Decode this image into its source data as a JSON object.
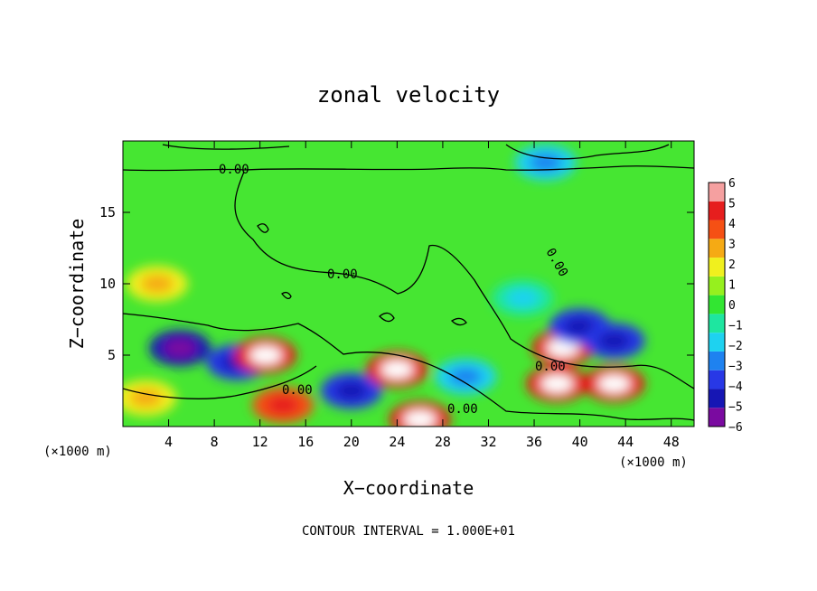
{
  "chart_data": {
    "type": "heatmap",
    "title": "zonal velocity",
    "xlabel": "X−coordinate",
    "ylabel": "Z−coordinate",
    "x_unit_left": "(×1000 m)",
    "x_unit_right": "(×1000 m)",
    "footer": "CONTOUR INTERVAL = 1.000E+01",
    "xlim": [
      0,
      50
    ],
    "ylim": [
      0,
      20
    ],
    "x_ticks": [
      4,
      8,
      12,
      16,
      20,
      24,
      28,
      32,
      36,
      40,
      44,
      48
    ],
    "y_ticks": [
      5,
      10,
      15
    ],
    "contour_label": "0.00",
    "colorbar": {
      "levels": [
        "−6",
        "−5",
        "−4",
        "−3",
        "−2",
        "−1",
        "0",
        "1",
        "2",
        "3",
        "4",
        "5",
        "6"
      ],
      "colors": [
        "#7a0aa0",
        "#1616b4",
        "#2838e6",
        "#1e82f0",
        "#1ed2f0",
        "#1ee6a0",
        "#32e632",
        "#96f01e",
        "#f0f01e",
        "#f5aa14",
        "#f55014",
        "#e61e1e",
        "#f5a0a0"
      ]
    },
    "features": [
      {
        "x": 5,
        "z": 5.5,
        "value": -6
      },
      {
        "x": 10,
        "z": 4.5,
        "value": -5
      },
      {
        "x": 12.5,
        "z": 5,
        "value": 6
      },
      {
        "x": 14,
        "z": 1.5,
        "value": 5
      },
      {
        "x": 20,
        "z": 2.5,
        "value": -5
      },
      {
        "x": 24,
        "z": 4,
        "value": 6
      },
      {
        "x": 26,
        "z": 0.5,
        "value": 6
      },
      {
        "x": 30,
        "z": 3.5,
        "value": -3
      },
      {
        "x": 38,
        "z": 3,
        "value": 6
      },
      {
        "x": 38.5,
        "z": 5.5,
        "value": 6
      },
      {
        "x": 43,
        "z": 3,
        "value": 6
      },
      {
        "x": 40,
        "z": 7,
        "value": -5
      },
      {
        "x": 43,
        "z": 6,
        "value": -5
      },
      {
        "x": 35,
        "z": 9,
        "value": -2
      },
      {
        "x": 3,
        "z": 10,
        "value": 3
      },
      {
        "x": 37,
        "z": 18.5,
        "value": -3
      },
      {
        "x": 2,
        "z": 2,
        "value": 3
      }
    ]
  }
}
